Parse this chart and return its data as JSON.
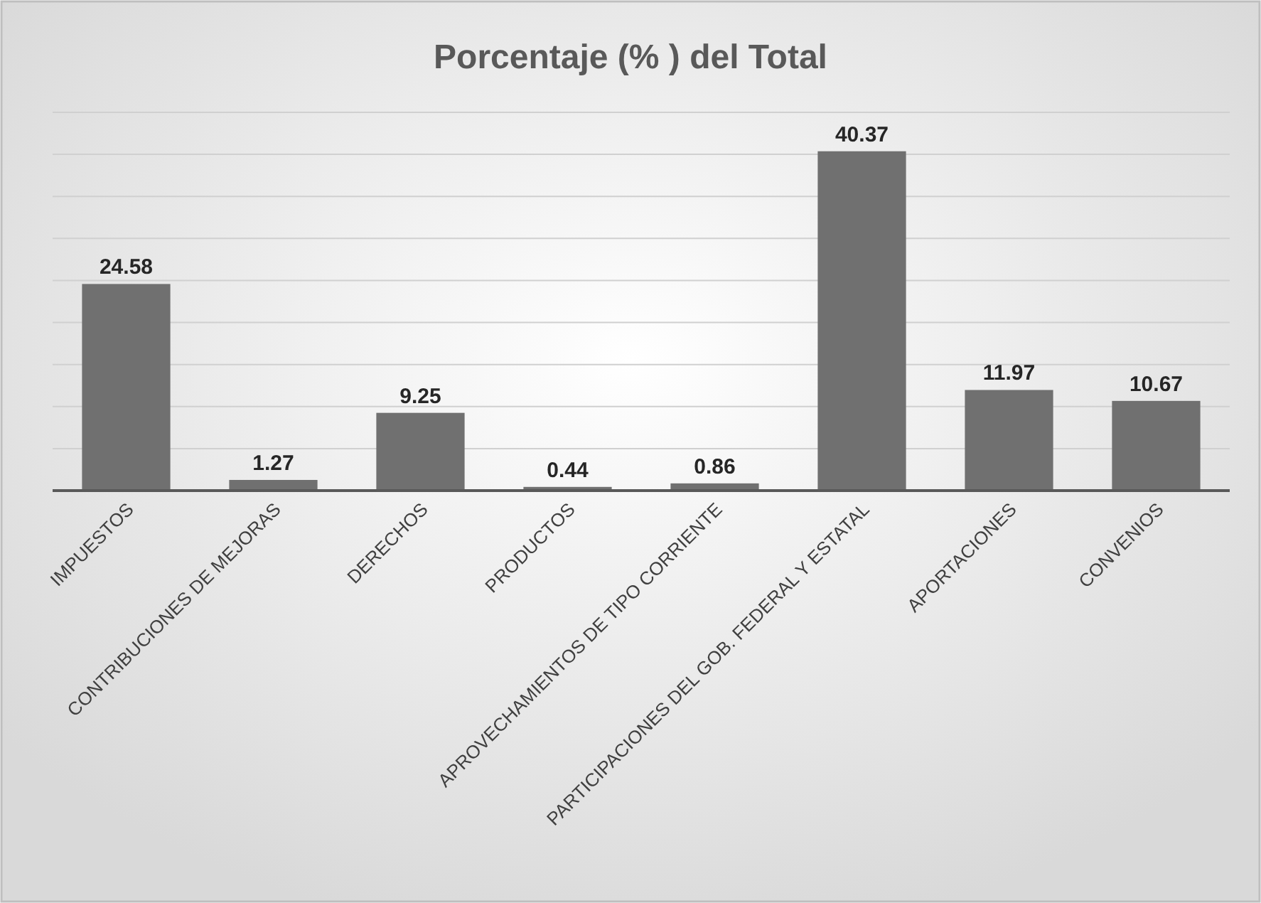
{
  "chart_data": {
    "type": "bar",
    "title": "Porcentaje (% ) del Total",
    "categories": [
      "IMPUESTOS",
      "CONTRIBUCIONES DE MEJORAS",
      "DERECHOS",
      "PRODUCTOS",
      "APROVECHAMIENTOS DE TIPO CORRIENTE",
      "PARTICIPACIONES DEL GOB. FEDERAL Y ESTATAL",
      "APORTACIONES",
      "CONVENIOS"
    ],
    "values": [
      24.58,
      1.27,
      9.25,
      0.44,
      0.86,
      40.37,
      11.97,
      10.67
    ],
    "color": "#707070",
    "ylim": [
      0,
      45
    ],
    "yticks": [
      {
        "value": 0,
        "label": null
      },
      {
        "value": 5,
        "label": null
      },
      {
        "value": 10,
        "label": null
      },
      {
        "value": 15,
        "label": null
      },
      {
        "value": 20,
        "label": null
      },
      {
        "value": 25,
        "label": null
      },
      {
        "value": 30,
        "label": null
      },
      {
        "value": 35,
        "label": null
      },
      {
        "value": 40,
        "label": null
      },
      {
        "value": 45,
        "label": null
      }
    ],
    "grid": "y",
    "tick_labels": "x",
    "data_labels": true
  }
}
